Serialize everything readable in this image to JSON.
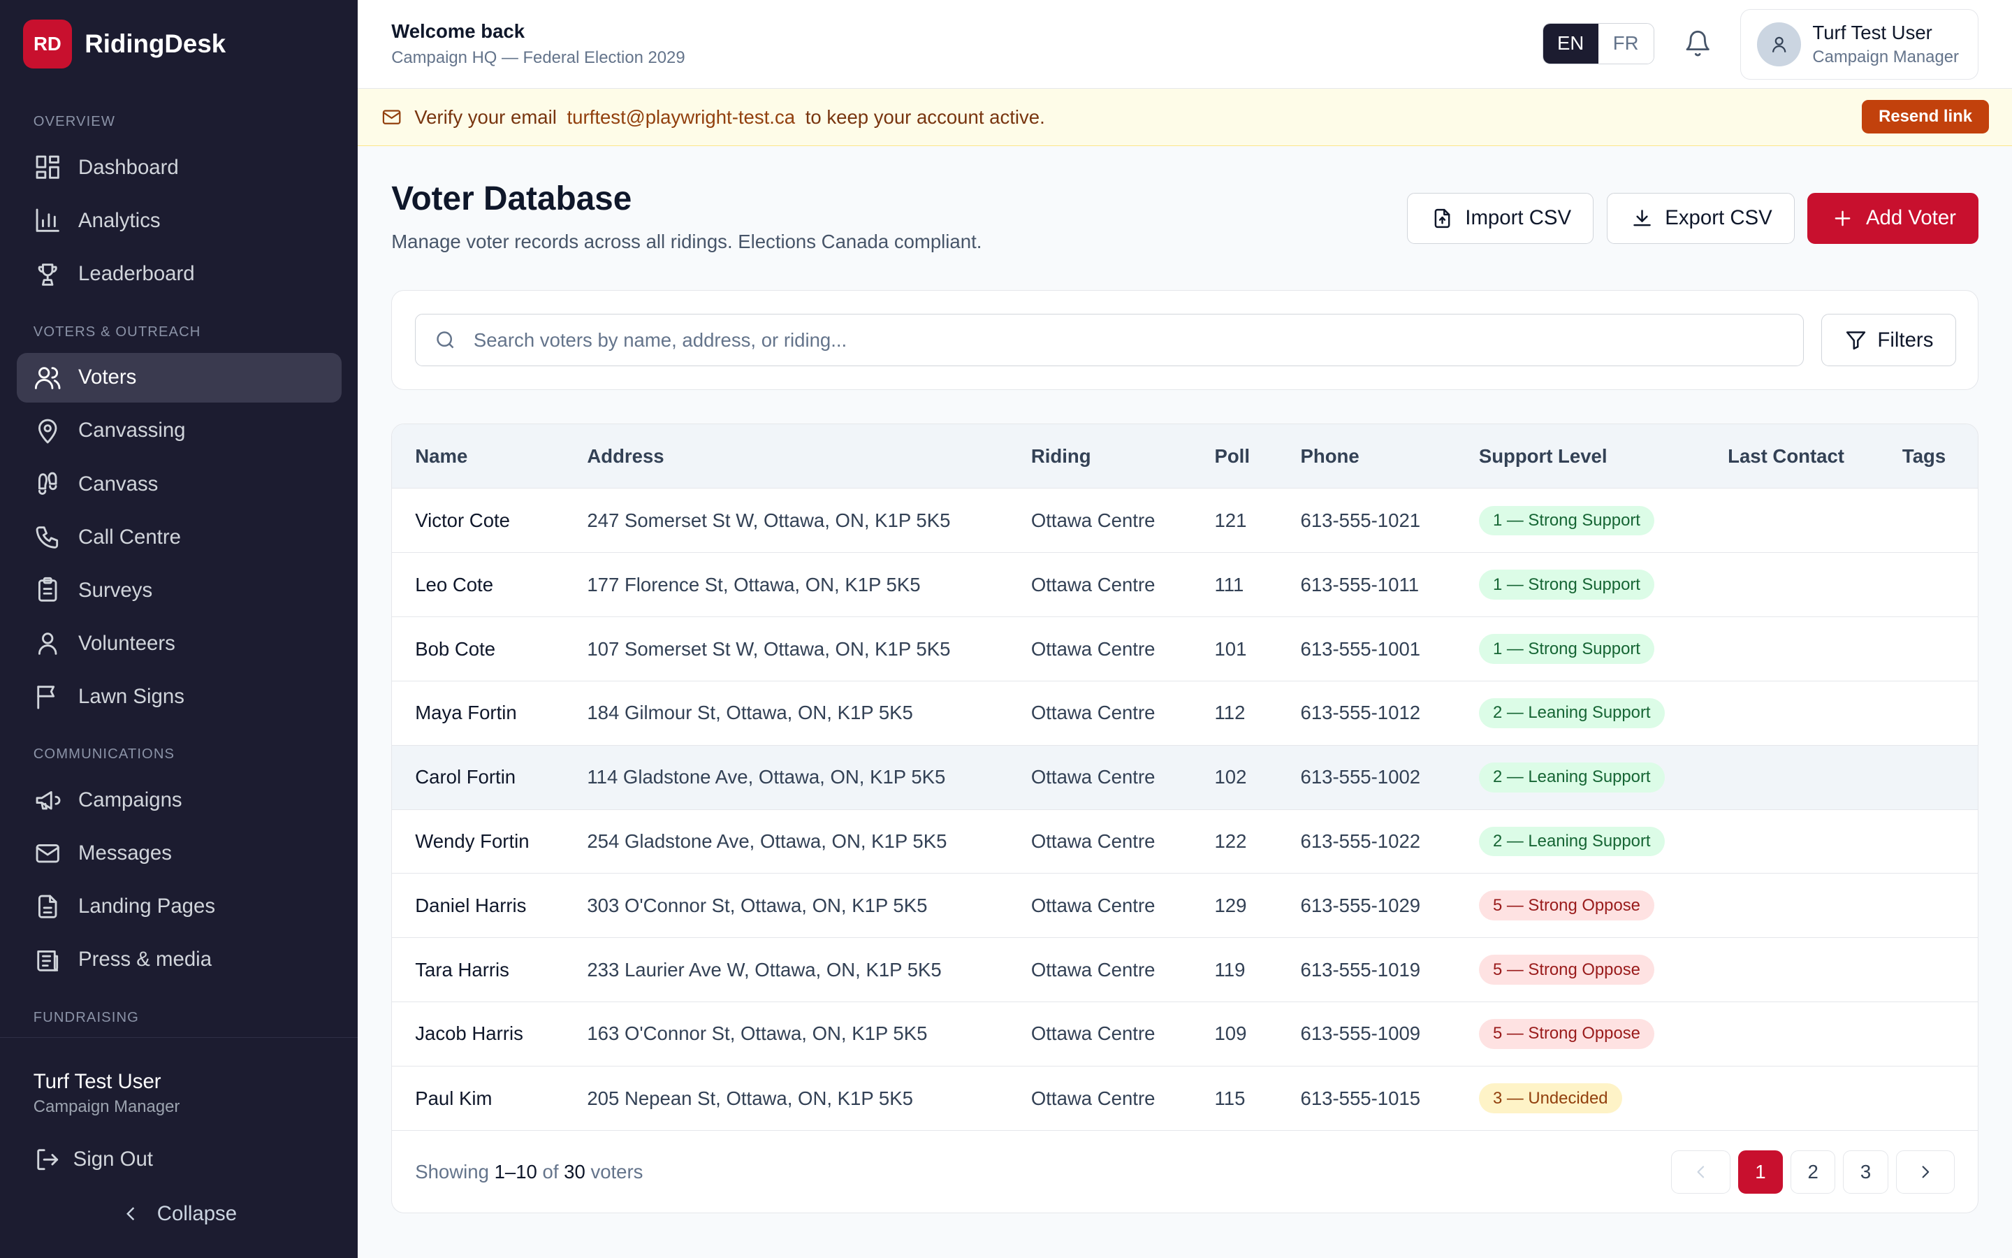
{
  "brand": {
    "logo": "RD",
    "name": "RidingDesk"
  },
  "sidebar": {
    "sections": [
      {
        "label": "Overview",
        "items": [
          {
            "label": "Dashboard",
            "icon": "dashboard-icon"
          },
          {
            "label": "Analytics",
            "icon": "bar-chart-icon"
          },
          {
            "label": "Leaderboard",
            "icon": "trophy-icon"
          }
        ]
      },
      {
        "label": "Voters & Outreach",
        "items": [
          {
            "label": "Voters",
            "icon": "users-icon",
            "active": true
          },
          {
            "label": "Canvassing",
            "icon": "map-pin-icon"
          },
          {
            "label": "Canvass",
            "icon": "footprints-icon"
          },
          {
            "label": "Call Centre",
            "icon": "phone-icon"
          },
          {
            "label": "Surveys",
            "icon": "clipboard-icon"
          },
          {
            "label": "Volunteers",
            "icon": "user-icon"
          },
          {
            "label": "Lawn Signs",
            "icon": "flag-icon"
          }
        ]
      },
      {
        "label": "Communications",
        "items": [
          {
            "label": "Campaigns",
            "icon": "megaphone-icon"
          },
          {
            "label": "Messages",
            "icon": "mail-icon"
          },
          {
            "label": "Landing Pages",
            "icon": "file-icon"
          },
          {
            "label": "Press & media",
            "icon": "newspaper-icon"
          }
        ]
      },
      {
        "label": "Fundraising",
        "items": []
      }
    ],
    "footer": {
      "user_name": "Turf Test User",
      "user_role": "Campaign Manager",
      "sign_out": "Sign Out",
      "collapse": "Collapse"
    }
  },
  "topbar": {
    "welcome_title": "Welcome back",
    "welcome_sub": "Campaign HQ — Federal Election 2029",
    "lang": [
      "EN",
      "FR"
    ],
    "lang_active": "EN",
    "user_name": "Turf Test User",
    "user_role": "Campaign Manager"
  },
  "banner": {
    "prefix": "Verify your email",
    "email": "turftest@playwright-test.ca",
    "suffix": "to keep your account active.",
    "action": "Resend link"
  },
  "page": {
    "title": "Voter Database",
    "subtitle": "Manage voter records across all ridings. Elections Canada compliant.",
    "import_label": "Import CSV",
    "export_label": "Export CSV",
    "add_label": "Add Voter"
  },
  "search": {
    "placeholder": "Search voters by name, address, or riding...",
    "value": "",
    "filters_label": "Filters"
  },
  "table": {
    "columns": [
      "Name",
      "Address",
      "Riding",
      "Poll",
      "Phone",
      "Support Level",
      "Last Contact",
      "Tags"
    ],
    "rows": [
      {
        "name": "Victor Cote",
        "address": "247 Somerset St W, Ottawa, ON, K1P 5K5",
        "riding": "Ottawa Centre",
        "poll": "121",
        "phone": "613-555-1021",
        "support": "1 — Strong Support",
        "tone": "green",
        "last_contact": "",
        "tags": ""
      },
      {
        "name": "Leo Cote",
        "address": "177 Florence St, Ottawa, ON, K1P 5K5",
        "riding": "Ottawa Centre",
        "poll": "111",
        "phone": "613-555-1011",
        "support": "1 — Strong Support",
        "tone": "green",
        "last_contact": "",
        "tags": ""
      },
      {
        "name": "Bob Cote",
        "address": "107 Somerset St W, Ottawa, ON, K1P 5K5",
        "riding": "Ottawa Centre",
        "poll": "101",
        "phone": "613-555-1001",
        "support": "1 — Strong Support",
        "tone": "green",
        "last_contact": "",
        "tags": ""
      },
      {
        "name": "Maya Fortin",
        "address": "184 Gilmour St, Ottawa, ON, K1P 5K5",
        "riding": "Ottawa Centre",
        "poll": "112",
        "phone": "613-555-1012",
        "support": "2 — Leaning Support",
        "tone": "green",
        "last_contact": "",
        "tags": ""
      },
      {
        "name": "Carol Fortin",
        "address": "114 Gladstone Ave, Ottawa, ON, K1P 5K5",
        "riding": "Ottawa Centre",
        "poll": "102",
        "phone": "613-555-1002",
        "support": "2 — Leaning Support",
        "tone": "green",
        "last_contact": "",
        "tags": "",
        "highlighted": true
      },
      {
        "name": "Wendy Fortin",
        "address": "254 Gladstone Ave, Ottawa, ON, K1P 5K5",
        "riding": "Ottawa Centre",
        "poll": "122",
        "phone": "613-555-1022",
        "support": "2 — Leaning Support",
        "tone": "green",
        "last_contact": "",
        "tags": ""
      },
      {
        "name": "Daniel Harris",
        "address": "303 O'Connor St, Ottawa, ON, K1P 5K5",
        "riding": "Ottawa Centre",
        "poll": "129",
        "phone": "613-555-1029",
        "support": "5 — Strong Oppose",
        "tone": "red",
        "last_contact": "",
        "tags": ""
      },
      {
        "name": "Tara Harris",
        "address": "233 Laurier Ave W, Ottawa, ON, K1P 5K5",
        "riding": "Ottawa Centre",
        "poll": "119",
        "phone": "613-555-1019",
        "support": "5 — Strong Oppose",
        "tone": "red",
        "last_contact": "",
        "tags": ""
      },
      {
        "name": "Jacob Harris",
        "address": "163 O'Connor St, Ottawa, ON, K1P 5K5",
        "riding": "Ottawa Centre",
        "poll": "109",
        "phone": "613-555-1009",
        "support": "5 — Strong Oppose",
        "tone": "red",
        "last_contact": "",
        "tags": ""
      },
      {
        "name": "Paul Kim",
        "address": "205 Nepean St, Ottawa, ON, K1P 5K5",
        "riding": "Ottawa Centre",
        "poll": "115",
        "phone": "613-555-1015",
        "support": "3 — Undecided",
        "tone": "yellow",
        "last_contact": "",
        "tags": ""
      }
    ]
  },
  "footer": {
    "showing": "Showing",
    "range": "1–10",
    "of": "of",
    "total": "30",
    "unit": "voters",
    "pages": [
      "1",
      "2",
      "3"
    ],
    "current_page": "1"
  },
  "colors": {
    "brand_red": "#c8102e",
    "sidebar_bg": "#1c1c30",
    "banner_bg": "#fefce8",
    "resend_bg": "#c2410c"
  }
}
